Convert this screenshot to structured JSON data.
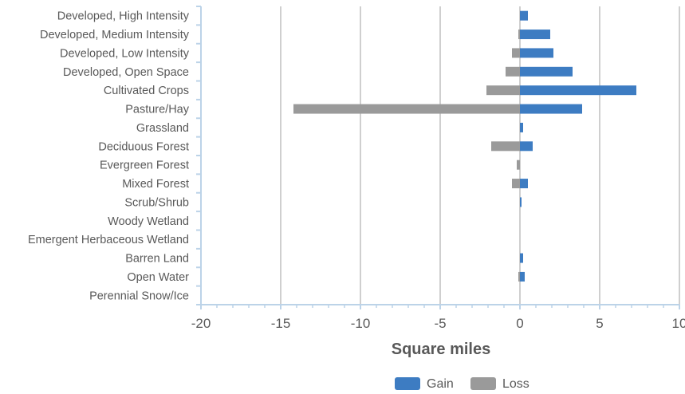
{
  "chart_data": {
    "type": "bar",
    "orientation": "horizontal",
    "categories": [
      "Developed, High Intensity",
      "Developed, Medium Intensity",
      "Developed, Low Intensity",
      "Developed, Open Space",
      "Cultivated Crops",
      "Pasture/Hay",
      "Grassland",
      "Deciduous Forest",
      "Evergreen Forest",
      "Mixed Forest",
      "Scrub/Shrub",
      "Woody Wetland",
      "Emergent Herbaceous Wetland",
      "Barren Land",
      "Open Water",
      "Perennial Snow/Ice"
    ],
    "series": [
      {
        "name": "Gain",
        "color": "#3d7cc2",
        "values": [
          0.5,
          1.9,
          2.1,
          3.3,
          7.3,
          3.9,
          0.2,
          0.8,
          0.0,
          0.5,
          0.1,
          0.0,
          0.0,
          0.2,
          0.3,
          0.0
        ]
      },
      {
        "name": "Loss",
        "color": "#9a9a9a",
        "values": [
          0.0,
          -0.1,
          -0.5,
          -0.9,
          -2.1,
          -14.2,
          0.0,
          -1.8,
          -0.2,
          -0.5,
          0.0,
          0.0,
          0.0,
          0.0,
          -0.1,
          0.0
        ]
      }
    ],
    "xlabel": "Square miles",
    "ylabel": "",
    "xlim": [
      -20,
      10
    ],
    "xticks": [
      "-20",
      "-15",
      "-10",
      "-5",
      "0",
      "5",
      "10"
    ],
    "grid": "vertical",
    "legend": "bottom-center"
  }
}
